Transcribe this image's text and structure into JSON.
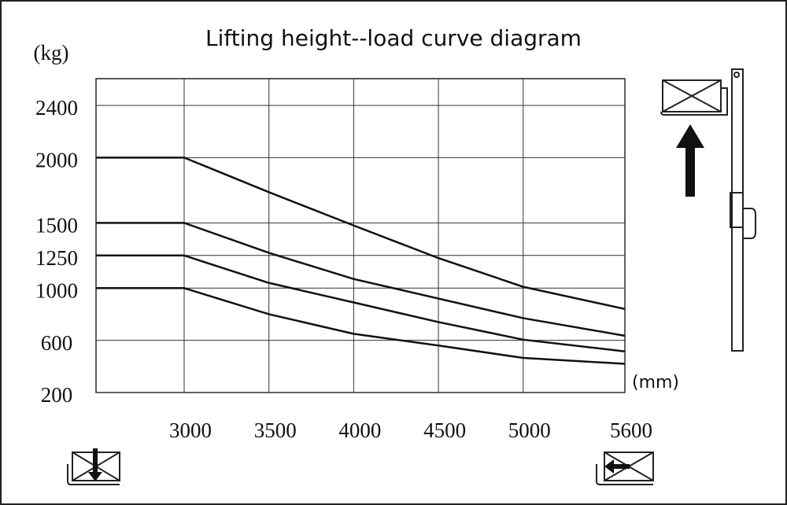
{
  "chart_data": {
    "type": "line",
    "title": "Lifting height--load curve diagram",
    "y_label": "(kg)",
    "x_label": "(mm)",
    "x": [
      2480,
      3000,
      3500,
      4000,
      4500,
      5000,
      5600
    ],
    "series": [
      {
        "color": "#111111",
        "values": [
          2000,
          2000,
          1735,
          1480,
          1230,
          1010,
          840
        ]
      },
      {
        "color": "#111111",
        "values": [
          1500,
          1500,
          1270,
          1070,
          920,
          770,
          635
        ]
      },
      {
        "color": "#111111",
        "values": [
          1250,
          1250,
          1040,
          890,
          740,
          605,
          515
        ]
      },
      {
        "color": "#111111",
        "values": [
          1000,
          1000,
          800,
          650,
          560,
          465,
          420
        ]
      }
    ],
    "xlim": [
      2480,
      5600
    ],
    "ylim": [
      200,
      2605
    ],
    "xticks": [
      3000,
      3500,
      4000,
      4500,
      5000,
      5600
    ],
    "yticks": [
      200,
      600,
      1000,
      1250,
      1500,
      2000,
      2400
    ],
    "grid": true
  }
}
